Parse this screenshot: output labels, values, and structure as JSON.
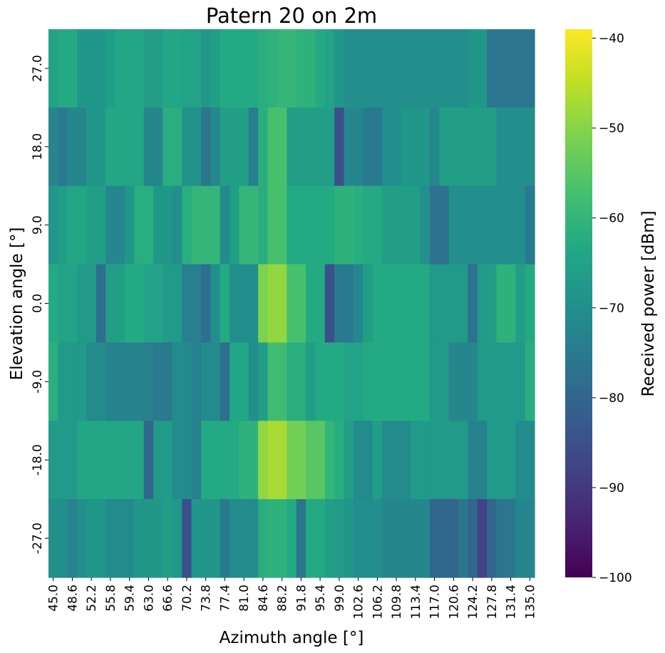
{
  "chart_data": {
    "type": "heatmap",
    "title": "Patern 20 on 2m",
    "xlabel": "Azimuth angle [°]",
    "ylabel": "Elevation angle [°]",
    "colorbar_label": "Received power [dBm]",
    "colormap": "viridis",
    "vmin": -100,
    "vmax": -39,
    "colorbar_ticks": [
      "−40",
      "−50",
      "−60",
      "−70",
      "−80",
      "−90",
      "−100"
    ],
    "colorbar_tick_values": [
      -40,
      -50,
      -60,
      -70,
      -80,
      -90,
      -100
    ],
    "x_tick_labels": [
      "45.0",
      "48.6",
      "52.2",
      "55.8",
      "59.4",
      "63.0",
      "66.6",
      "70.2",
      "73.8",
      "77.4",
      "81.0",
      "84.6",
      "88.2",
      "91.8",
      "95.4",
      "99.0",
      "102.6",
      "106.2",
      "109.8",
      "113.4",
      "117.0",
      "120.6",
      "124.2",
      "127.8",
      "131.4",
      "135.0"
    ],
    "y_tick_labels": [
      "27.0",
      "18.0",
      "9.0",
      "0.0",
      "-9.0",
      "-18.0",
      "-27.0"
    ],
    "x": [
      45.0,
      46.8,
      48.6,
      50.4,
      52.2,
      54.0,
      55.8,
      57.6,
      59.4,
      61.2,
      63.0,
      64.8,
      66.6,
      68.4,
      70.2,
      72.0,
      73.8,
      75.6,
      77.4,
      79.2,
      81.0,
      82.8,
      84.6,
      86.4,
      88.2,
      90.0,
      91.8,
      93.6,
      95.4,
      97.2,
      99.0,
      100.8,
      102.6,
      104.4,
      106.2,
      108.0,
      109.8,
      111.6,
      113.4,
      115.2,
      117.0,
      118.8,
      120.6,
      122.4,
      124.2,
      126.0,
      127.8,
      129.6,
      131.4,
      133.2,
      135.0
    ],
    "y": [
      27.0,
      18.0,
      9.0,
      0.0,
      -9.0,
      -18.0,
      -27.0
    ],
    "values": [
      [
        -65,
        -63,
        -63,
        -68,
        -68,
        -68,
        -66,
        -64,
        -64,
        -64,
        -66,
        -66,
        -64,
        -64,
        -65,
        -65,
        -68,
        -66,
        -63,
        -63,
        -63,
        -63,
        -62,
        -61,
        -60,
        -60,
        -61,
        -61,
        -63,
        -65,
        -68,
        -70,
        -70,
        -70,
        -70,
        -70,
        -70,
        -70,
        -70,
        -70,
        -70,
        -70,
        -70,
        -70,
        -68,
        -68,
        -76,
        -76,
        -76,
        -76,
        -76
      ],
      [
        -72,
        -75,
        -72,
        -72,
        -68,
        -68,
        -64,
        -64,
        -64,
        -64,
        -72,
        -72,
        -62,
        -62,
        -69,
        -69,
        -76,
        -72,
        -66,
        -66,
        -66,
        -74,
        -62,
        -57,
        -57,
        -66,
        -66,
        -66,
        -66,
        -66,
        -85,
        -72,
        -72,
        -75,
        -75,
        -70,
        -70,
        -68,
        -68,
        -68,
        -72,
        -66,
        -66,
        -66,
        -66,
        -66,
        -66,
        -70,
        -70,
        -70,
        -70
      ],
      [
        -68,
        -66,
        -64,
        -64,
        -66,
        -66,
        -72,
        -72,
        -68,
        -62,
        -62,
        -68,
        -68,
        -70,
        -62,
        -60,
        -60,
        -60,
        -71,
        -66,
        -60,
        -60,
        -62,
        -57,
        -57,
        -63,
        -63,
        -63,
        -63,
        -63,
        -61,
        -61,
        -62,
        -63,
        -63,
        -66,
        -66,
        -66,
        -66,
        -70,
        -77,
        -77,
        -70,
        -70,
        -70,
        -70,
        -70,
        -70,
        -70,
        -70,
        -75
      ],
      [
        -63,
        -65,
        -65,
        -67,
        -67,
        -78,
        -66,
        -66,
        -63,
        -63,
        -65,
        -65,
        -67,
        -67,
        -74,
        -74,
        -78,
        -70,
        -63,
        -70,
        -70,
        -70,
        -51,
        -49,
        -49,
        -57,
        -57,
        -63,
        -63,
        -85,
        -75,
        -75,
        -72,
        -66,
        -63,
        -63,
        -63,
        -63,
        -63,
        -63,
        -67,
        -67,
        -67,
        -67,
        -77,
        -67,
        -66,
        -61,
        -61,
        -66,
        -63
      ],
      [
        -62,
        -67,
        -67,
        -67,
        -71,
        -71,
        -73,
        -73,
        -73,
        -73,
        -74,
        -75,
        -75,
        -71,
        -71,
        -74,
        -71,
        -71,
        -78,
        -64,
        -64,
        -70,
        -66,
        -58,
        -58,
        -62,
        -62,
        -66,
        -63,
        -63,
        -63,
        -65,
        -65,
        -63,
        -63,
        -63,
        -63,
        -63,
        -63,
        -63,
        -67,
        -67,
        -72,
        -72,
        -72,
        -67,
        -67,
        -67,
        -67,
        -67,
        -62
      ],
      [
        -67,
        -67,
        -67,
        -64,
        -64,
        -64,
        -64,
        -64,
        -64,
        -64,
        -80,
        -67,
        -67,
        -71,
        -71,
        -74,
        -63,
        -63,
        -63,
        -63,
        -61,
        -61,
        -49,
        -47,
        -47,
        -52,
        -52,
        -55,
        -55,
        -60,
        -62,
        -66,
        -71,
        -71,
        -66,
        -71,
        -71,
        -71,
        -67,
        -67,
        -67,
        -67,
        -67,
        -67,
        -73,
        -73,
        -67,
        -67,
        -67,
        -71,
        -71
      ],
      [
        -70,
        -70,
        -73,
        -70,
        -68,
        -68,
        -71,
        -71,
        -71,
        -68,
        -68,
        -68,
        -66,
        -68,
        -85,
        -68,
        -68,
        -68,
        -75,
        -71,
        -71,
        -71,
        -62,
        -61,
        -61,
        -63,
        -76,
        -63,
        -63,
        -66,
        -67,
        -68,
        -70,
        -70,
        -70,
        -72,
        -72,
        -72,
        -72,
        -72,
        -80,
        -80,
        -80,
        -76,
        -80,
        -88,
        -80,
        -76,
        -76,
        -72,
        -72
      ]
    ]
  }
}
